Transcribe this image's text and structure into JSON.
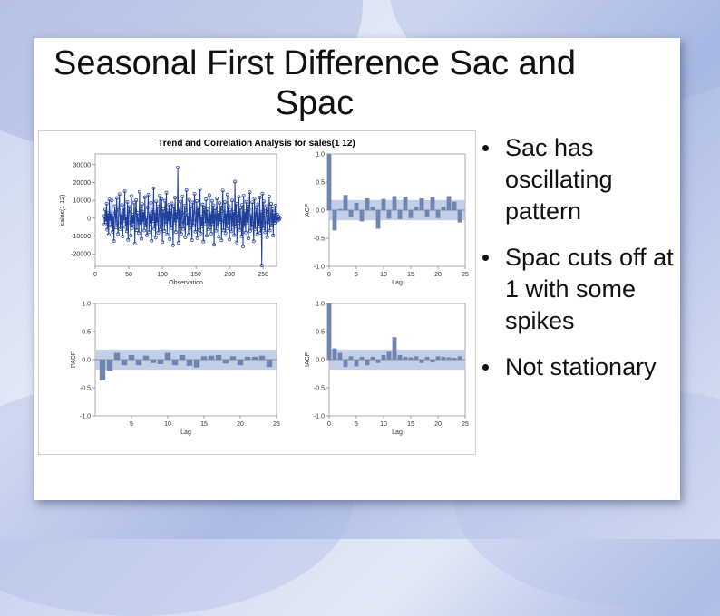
{
  "slide": {
    "title": "Seasonal First Difference Sac and Spac",
    "bullets": [
      "Sac has oscillating pattern",
      "Spac cuts off at 1 with some spikes",
      "Not stationary"
    ]
  },
  "colors": {
    "series": "#1f3f9a",
    "bar": "#6f84b0",
    "band": "#b8c6e3"
  },
  "figure_title": "Trend and Correlation Analysis for sales(1 12)",
  "chart_data": [
    {
      "type": "line",
      "title": "",
      "xlabel": "Observation",
      "ylabel": "sales(1 12)",
      "xlim": [
        0,
        270
      ],
      "ylim": [
        -27000,
        36000
      ],
      "xticks": [
        0,
        50,
        100,
        150,
        200,
        250
      ],
      "yticks": [
        30000,
        20000,
        10000,
        0,
        -10000,
        -20000
      ],
      "ytick_labels": [
        "30000",
        "20000",
        "10000",
        "0",
        "-10000",
        "-20000"
      ],
      "x_start": 13,
      "values": [
        1200,
        -3500,
        4800,
        -2100,
        8200,
        -6400,
        3100,
        -9200,
        10500,
        -1800,
        2600,
        -4400,
        9900,
        -7600,
        1500,
        -12800,
        6800,
        3400,
        -5200,
        11300,
        -2700,
        -8800,
        4600,
        13500,
        -6100,
        2200,
        -3900,
        7400,
        -10200,
        5600,
        -1400,
        15200,
        -4900,
        800,
        -7300,
        9100,
        -12100,
        3700,
        6300,
        -2500,
        -9800,
        12400,
        -5500,
        1900,
        -3200,
        8700,
        -14200,
        4300,
        10100,
        -6700,
        2900,
        -1100,
        -8300,
        14800,
        -3700,
        5200,
        -11500,
        7900,
        -2200,
        3600,
        -6900,
        11800,
        -4100,
        200,
        -9600,
        6100,
        13200,
        -7800,
        2500,
        -3000,
        8600,
        -12600,
        4700,
        -1600,
        16800,
        -5900,
        3300,
        -10900,
        9400,
        -2800,
        6700,
        -8100,
        1300,
        12700,
        -6300,
        -4200,
        10800,
        -13400,
        5100,
        2100,
        -7200,
        9800,
        -3400,
        14300,
        -9100,
        4200,
        -1900,
        7600,
        -11600,
        3900,
        -5600,
        8300,
        1100,
        -15200,
        6600,
        -2400,
        11500,
        -7700,
        3500,
        -900,
        28500,
        -13800,
        5300,
        -4600,
        9300,
        -8800,
        2700,
        12200,
        -6000,
        -2300,
        7100,
        -10700,
        4500,
        15800,
        -3800,
        1700,
        -9300,
        10300,
        -5400,
        6400,
        -2100,
        -12200,
        8800,
        -4000,
        3200,
        13700,
        -7500,
        -1300,
        9600,
        -11100,
        5800,
        2300,
        -6600,
        16200,
        -8500,
        1000,
        -4700,
        7700,
        -13100,
        6000,
        3700,
        -2900,
        10600,
        -9900,
        4900,
        -1500,
        -6200,
        12900,
        -5100,
        2600,
        -8600,
        9700,
        -3300,
        7300,
        -14900,
        5500,
        1400,
        -7000,
        11100,
        -4400,
        3000,
        -10400,
        8500,
        -2000,
        6200,
        -12400,
        4000,
        15500,
        -6800,
        -1700,
        9000,
        -8300,
        2800,
        -5800,
        13300,
        -3600,
        6900,
        -11900,
        4600,
        1800,
        -7400,
        10000,
        -5000,
        3400,
        -9500,
        20500,
        -4800,
        8100,
        -13600,
        2400,
        -2600,
        11900,
        -6500,
        5700,
        -1200,
        -10100,
        7500,
        -15800,
        12600,
        -4300,
        3800,
        -8000,
        9200,
        -2700,
        6500,
        -11300,
        4800,
        14600,
        -7100,
        1600,
        -5300,
        8900,
        -3100,
        -12900,
        10900,
        -6100,
        2200,
        5900,
        -9000,
        7800,
        -1900,
        -4500,
        11600,
        -8200,
        3600,
        -26500,
        13800,
        -5700,
        9500,
        -2300,
        -7900,
        4100,
        6800,
        -10600,
        2000,
        -3500,
        12100,
        -6900,
        -1000,
        8000,
        -4100,
        5000,
        -9700,
        3000,
        -2600,
        7000,
        -1800,
        -500,
        2100,
        -1300,
        900,
        -600,
        300
      ]
    },
    {
      "type": "bar",
      "title": "",
      "xlabel": "Lag",
      "ylabel": "ACF",
      "xlim": [
        0,
        25
      ],
      "ylim": [
        -1.0,
        1.0
      ],
      "xticks": [
        0,
        5,
        10,
        15,
        20,
        25
      ],
      "yticks": [
        1.0,
        0.5,
        0.0,
        -0.5,
        -1.0
      ],
      "ytick_labels": [
        "1.0",
        "0.5",
        "0.0",
        "-0.5",
        "-1.0"
      ],
      "band": 0.18,
      "lags": [
        0,
        1,
        2,
        3,
        4,
        5,
        6,
        7,
        8,
        9,
        10,
        11,
        12,
        13,
        14,
        15,
        16,
        17,
        18,
        19,
        20,
        21,
        22,
        23,
        24
      ],
      "values": [
        1.0,
        -0.36,
        0.02,
        0.27,
        -0.12,
        0.13,
        -0.2,
        0.21,
        0.06,
        -0.33,
        0.2,
        -0.15,
        0.25,
        -0.16,
        0.24,
        -0.14,
        0.06,
        0.21,
        -0.12,
        0.23,
        -0.14,
        0.06,
        0.25,
        0.15,
        -0.22
      ]
    },
    {
      "type": "bar",
      "title": "",
      "xlabel": "Lag",
      "ylabel": "PACF",
      "xlim": [
        0,
        25
      ],
      "ylim": [
        -1.0,
        1.0
      ],
      "xticks": [
        5,
        10,
        15,
        20,
        25
      ],
      "yticks": [
        1.0,
        0.5,
        0.0,
        -0.5,
        -1.0
      ],
      "ytick_labels": [
        "1.0",
        "0.5",
        "0.0",
        "-0.5",
        "-1.0"
      ],
      "band": 0.18,
      "lags": [
        1,
        2,
        3,
        4,
        5,
        6,
        7,
        8,
        9,
        10,
        11,
        12,
        13,
        14,
        15,
        16,
        17,
        18,
        19,
        20,
        21,
        22,
        23,
        24
      ],
      "values": [
        -0.37,
        -0.2,
        0.12,
        -0.1,
        0.08,
        -0.1,
        0.07,
        -0.06,
        -0.08,
        0.12,
        -0.1,
        0.08,
        -0.11,
        -0.14,
        0.06,
        0.07,
        0.08,
        -0.07,
        0.06,
        -0.1,
        0.05,
        0.05,
        0.07,
        -0.13
      ]
    },
    {
      "type": "bar",
      "title": "",
      "xlabel": "Lag",
      "ylabel": "IACF",
      "xlim": [
        0,
        25
      ],
      "ylim": [
        -1.0,
        1.0
      ],
      "xticks": [
        0,
        5,
        10,
        15,
        20,
        25
      ],
      "yticks": [
        1.0,
        0.5,
        0.0,
        -0.5,
        -1.0
      ],
      "ytick_labels": [
        "1.0",
        "0.5",
        "0.0",
        "-0.5",
        "-1.0"
      ],
      "band": 0.18,
      "lags": [
        0,
        1,
        2,
        3,
        4,
        5,
        6,
        7,
        8,
        9,
        10,
        11,
        12,
        13,
        14,
        15,
        16,
        17,
        18,
        19,
        20,
        21,
        22,
        23,
        24
      ],
      "values": [
        1.0,
        0.2,
        0.12,
        -0.13,
        0.06,
        -0.12,
        0.05,
        -0.1,
        0.05,
        -0.06,
        0.08,
        0.14,
        0.4,
        0.08,
        0.05,
        0.04,
        0.06,
        -0.06,
        0.05,
        -0.05,
        0.06,
        0.05,
        0.04,
        0.03,
        0.06
      ]
    }
  ]
}
